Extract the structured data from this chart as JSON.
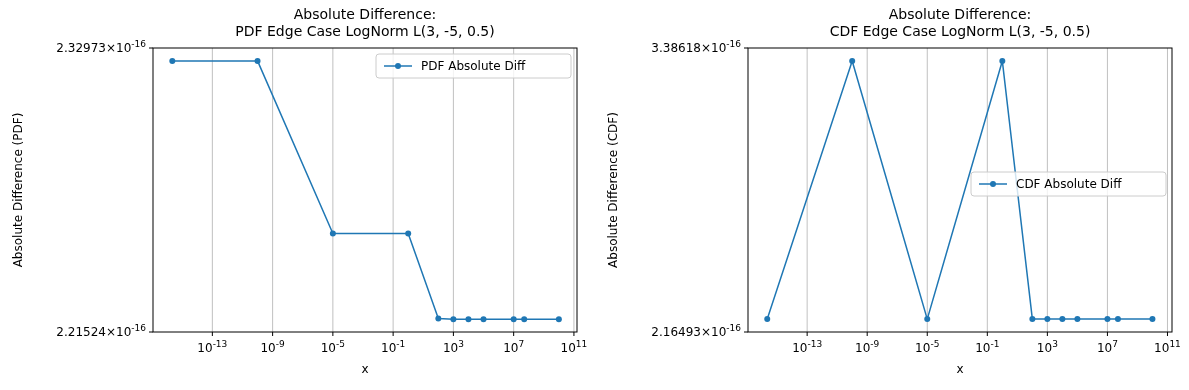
{
  "chart_data": [
    {
      "type": "line",
      "title": "Absolute Difference:\nPDF Edge Case LogNorm L(3, -5, 0.5)",
      "xlabel": "x",
      "ylabel": "Absolute Difference (PDF)",
      "log": "xy",
      "grid": "x",
      "legend": "top right",
      "marker": "circle",
      "line_style": "solid",
      "xlim": [
        1.15e-17,
        160000000000.0
      ],
      "xticks": [
        {
          "value": 1e-13,
          "label": "10$^{-13}$"
        },
        {
          "value": 1e-09,
          "label": "10$^{-9}$"
        },
        {
          "value": 1e-05,
          "label": "10$^{-5}$"
        },
        {
          "value": 0.1,
          "label": "10$^{-1}$"
        },
        {
          "value": 1000,
          "label": "10$^{3}$"
        },
        {
          "value": 10000000.0,
          "label": "10$^{7}$"
        },
        {
          "value": 100000000000.0,
          "label": "10$^{11}$"
        }
      ],
      "ylim": [
        2.21524e-16,
        2.32973e-16
      ],
      "yticks": [
        {
          "value": 2.21524e-16,
          "label": "2.21524×10$^{-16}$"
        },
        {
          "value": 2.32973e-16,
          "label": "2.32973×10$^{-16}$"
        }
      ],
      "x": [
        2.2e-16,
        1e-10,
        1e-05,
        1,
        100,
        1000,
        10000,
        100000,
        10000000.0,
        50000000.0,
        10000000000.0
      ],
      "series": [
        {
          "name": "PDF Absolute Diff",
          "color": "#1f77b4",
          "values": [
            2.3244e-16,
            2.3244e-16,
            2.2543e-16,
            2.2543e-16,
            2.2206e-16,
            2.2203e-16,
            2.2203e-16,
            2.2203e-16,
            2.2203e-16,
            2.2203e-16,
            2.2203e-16
          ]
        }
      ]
    },
    {
      "type": "line",
      "title": "Absolute Difference:\nCDF Edge Case LogNorm L(3, -5, 0.5)",
      "xlabel": "x",
      "ylabel": "Absolute Difference (CDF)",
      "log": "xy",
      "grid": "x",
      "legend": "right",
      "marker": "circle",
      "line_style": "solid",
      "xlim": [
        1.15e-17,
        200000000000.0
      ],
      "xticks": [
        {
          "value": 1e-13,
          "label": "10$^{-13}$"
        },
        {
          "value": 1e-09,
          "label": "10$^{-9}$"
        },
        {
          "value": 1e-05,
          "label": "10$^{-5}$"
        },
        {
          "value": 0.1,
          "label": "10$^{-1}$"
        },
        {
          "value": 1000,
          "label": "10$^{3}$"
        },
        {
          "value": 10000000.0,
          "label": "10$^{7}$"
        },
        {
          "value": 100000000000.0,
          "label": "10$^{11}$"
        }
      ],
      "ylim": [
        2.16493e-16,
        3.38618e-16
      ],
      "yticks": [
        {
          "value": 2.16493e-16,
          "label": "2.16493×10$^{-16}$"
        },
        {
          "value": 3.38618e-16,
          "label": "3.38618×10$^{-16}$"
        }
      ],
      "x": [
        2.2e-16,
        1e-10,
        1e-05,
        1,
        100,
        1000,
        10000,
        100000,
        10000000.0,
        50000000.0,
        10000000000.0
      ],
      "series": [
        {
          "name": "CDF Absolute Diff",
          "color": "#1f77b4",
          "values": [
            2.2094e-16,
            3.3178e-16,
            2.2094e-16,
            3.3178e-16,
            2.2094e-16,
            2.2094e-16,
            2.2094e-16,
            2.2094e-16,
            2.2094e-16,
            2.2094e-16,
            2.2094e-16
          ]
        }
      ]
    }
  ]
}
